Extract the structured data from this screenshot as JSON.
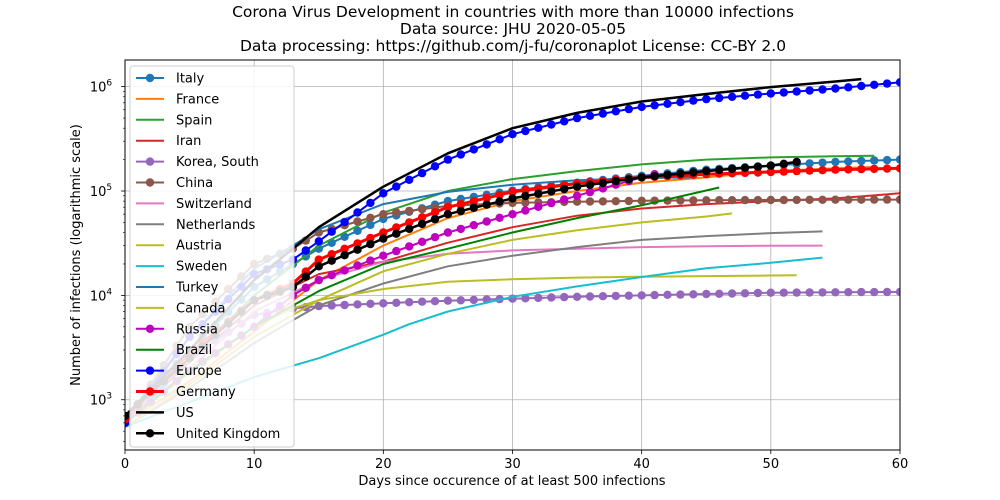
{
  "chart_data": {
    "type": "line",
    "title_lines": [
      "Corona Virus Development in countries with more than  10000 infections",
      "Data source: JHU 2020-05-05",
      "Data processing: https://github.com/j-fu/coronaplot  License: CC-BY 2.0"
    ],
    "xlabel": "Days since occurence of at least 500 infections",
    "ylabel": "Number of infections (logarithmic scale)",
    "xlim": [
      0,
      60
    ],
    "ylim": [
      330,
      1800000
    ],
    "yscale": "log",
    "grid": true,
    "legend_position": "upper-left",
    "x_ticks": [
      0,
      10,
      20,
      30,
      40,
      50,
      60
    ],
    "y_ticks": [
      {
        "value": 1000,
        "label_base": "10",
        "label_exp": "3"
      },
      {
        "value": 10000,
        "label_base": "10",
        "label_exp": "4"
      },
      {
        "value": 100000,
        "label_base": "10",
        "label_exp": "5"
      },
      {
        "value": 1000000,
        "label_base": "10",
        "label_exp": "6"
      }
    ],
    "series": [
      {
        "name": "Italy",
        "color": "#1f77b4",
        "marker": true,
        "width": 2,
        "points": [
          [
            0,
            650
          ],
          [
            5,
            3000
          ],
          [
            10,
            12000
          ],
          [
            15,
            28000
          ],
          [
            20,
            54000
          ],
          [
            25,
            80000
          ],
          [
            30,
            101000
          ],
          [
            35,
            120000
          ],
          [
            40,
            140000
          ],
          [
            45,
            160000
          ],
          [
            50,
            175000
          ],
          [
            55,
            190000
          ],
          [
            60,
            200000
          ]
        ]
      },
      {
        "name": "France",
        "color": "#ff7f0e",
        "marker": false,
        "width": 2,
        "points": [
          [
            0,
            600
          ],
          [
            5,
            1500
          ],
          [
            10,
            4500
          ],
          [
            15,
            14000
          ],
          [
            20,
            30000
          ],
          [
            25,
            55000
          ],
          [
            30,
            80000
          ],
          [
            35,
            100000
          ],
          [
            40,
            120000
          ],
          [
            45,
            135000
          ],
          [
            50,
            155000
          ],
          [
            55,
            165000
          ],
          [
            58,
            170000
          ]
        ]
      },
      {
        "name": "Spain",
        "color": "#2ca02c",
        "marker": false,
        "width": 2,
        "points": [
          [
            0,
            600
          ],
          [
            5,
            2500
          ],
          [
            10,
            10000
          ],
          [
            15,
            30000
          ],
          [
            20,
            62000
          ],
          [
            25,
            100000
          ],
          [
            30,
            130000
          ],
          [
            35,
            155000
          ],
          [
            40,
            180000
          ],
          [
            45,
            200000
          ],
          [
            50,
            210000
          ],
          [
            55,
            215000
          ],
          [
            58,
            218000
          ]
        ]
      },
      {
        "name": "Iran",
        "color": "#d62728",
        "marker": false,
        "width": 2,
        "points": [
          [
            0,
            600
          ],
          [
            5,
            2300
          ],
          [
            10,
            8000
          ],
          [
            15,
            16000
          ],
          [
            20,
            21000
          ],
          [
            25,
            32000
          ],
          [
            30,
            45000
          ],
          [
            35,
            58000
          ],
          [
            40,
            68000
          ],
          [
            45,
            75000
          ],
          [
            50,
            80000
          ],
          [
            55,
            85000
          ],
          [
            60,
            95000
          ]
        ]
      },
      {
        "name": "Korea, South",
        "color": "#9467bd",
        "marker": true,
        "width": 2,
        "points": [
          [
            0,
            600
          ],
          [
            5,
            2500
          ],
          [
            10,
            6500
          ],
          [
            13,
            7500
          ],
          [
            15,
            7900
          ],
          [
            20,
            8400
          ],
          [
            25,
            8900
          ],
          [
            30,
            9300
          ],
          [
            35,
            9700
          ],
          [
            40,
            10000
          ],
          [
            45,
            10300
          ],
          [
            50,
            10600
          ],
          [
            55,
            10700
          ],
          [
            60,
            10800
          ]
        ]
      },
      {
        "name": "China",
        "color": "#8c564b",
        "marker": true,
        "width": 2,
        "points": [
          [
            0,
            600
          ],
          [
            5,
            5000
          ],
          [
            10,
            20000
          ],
          [
            13,
            28000
          ],
          [
            15,
            40000
          ],
          [
            20,
            60000
          ],
          [
            25,
            72000
          ],
          [
            30,
            77000
          ],
          [
            35,
            79000
          ],
          [
            40,
            80500
          ],
          [
            45,
            81500
          ],
          [
            50,
            82000
          ],
          [
            55,
            82500
          ],
          [
            60,
            82800
          ]
        ]
      },
      {
        "name": "Switzerland",
        "color": "#e377c2",
        "marker": false,
        "width": 2,
        "points": [
          [
            0,
            600
          ],
          [
            5,
            2000
          ],
          [
            10,
            7000
          ],
          [
            15,
            14000
          ],
          [
            20,
            21000
          ],
          [
            25,
            25000
          ],
          [
            30,
            27000
          ],
          [
            35,
            28000
          ],
          [
            40,
            29000
          ],
          [
            45,
            29600
          ],
          [
            50,
            29900
          ],
          [
            54,
            30000
          ]
        ]
      },
      {
        "name": "Netherlands",
        "color": "#7f7f7f",
        "marker": false,
        "width": 2,
        "points": [
          [
            0,
            550
          ],
          [
            5,
            1300
          ],
          [
            10,
            3500
          ],
          [
            13,
            5800
          ],
          [
            15,
            8000
          ],
          [
            20,
            13000
          ],
          [
            25,
            19000
          ],
          [
            30,
            24000
          ],
          [
            35,
            29000
          ],
          [
            40,
            34000
          ],
          [
            45,
            37000
          ],
          [
            50,
            39500
          ],
          [
            54,
            41000
          ]
        ]
      },
      {
        "name": "Austria",
        "color": "#bcbd22",
        "marker": false,
        "width": 2,
        "points": [
          [
            0,
            600
          ],
          [
            5,
            1800
          ],
          [
            10,
            5000
          ],
          [
            13,
            7500
          ],
          [
            15,
            9000
          ],
          [
            20,
            11500
          ],
          [
            25,
            13500
          ],
          [
            30,
            14300
          ],
          [
            35,
            14800
          ],
          [
            40,
            15100
          ],
          [
            45,
            15300
          ],
          [
            50,
            15500
          ],
          [
            52,
            15600
          ]
        ]
      },
      {
        "name": "Sweden",
        "color": "#17becf",
        "marker": false,
        "width": 2,
        "points": [
          [
            0,
            550
          ],
          [
            5,
            950
          ],
          [
            10,
            1650
          ],
          [
            15,
            2500
          ],
          [
            20,
            4200
          ],
          [
            22,
            5300
          ],
          [
            25,
            7000
          ],
          [
            30,
            9700
          ],
          [
            35,
            12200
          ],
          [
            40,
            15000
          ],
          [
            45,
            18200
          ],
          [
            50,
            20500
          ],
          [
            54,
            23000
          ]
        ]
      },
      {
        "name": "Turkey",
        "color": "#1f77b4",
        "marker": false,
        "width": 2,
        "points": [
          [
            0,
            650
          ],
          [
            5,
            4000
          ],
          [
            10,
            18000
          ],
          [
            13,
            30000
          ],
          [
            15,
            43000
          ],
          [
            20,
            75000
          ],
          [
            25,
            98000
          ],
          [
            30,
            115000
          ],
          [
            35,
            127000
          ],
          [
            40,
            133000
          ],
          [
            44,
            135000
          ]
        ]
      },
      {
        "name": "Canada",
        "color": "#bcbd22",
        "marker": false,
        "width": 2,
        "points": [
          [
            0,
            550
          ],
          [
            5,
            1400
          ],
          [
            10,
            4000
          ],
          [
            13,
            6500
          ],
          [
            15,
            9000
          ],
          [
            20,
            17000
          ],
          [
            25,
            25000
          ],
          [
            30,
            34000
          ],
          [
            35,
            42000
          ],
          [
            40,
            50000
          ],
          [
            45,
            57000
          ],
          [
            47,
            61000
          ]
        ]
      },
      {
        "name": "Russia",
        "color": "#c000c0",
        "marker": true,
        "width": 2,
        "points": [
          [
            0,
            600
          ],
          [
            5,
            1900
          ],
          [
            10,
            5000
          ],
          [
            13,
            10000
          ],
          [
            15,
            14000
          ],
          [
            20,
            24000
          ],
          [
            25,
            40000
          ],
          [
            30,
            60000
          ],
          [
            35,
            90000
          ],
          [
            38,
            115000
          ],
          [
            40,
            135000
          ],
          [
            41,
            145000
          ]
        ]
      },
      {
        "name": "Brazil",
        "color": "#008000",
        "marker": false,
        "width": 2,
        "points": [
          [
            0,
            600
          ],
          [
            5,
            1900
          ],
          [
            10,
            5000
          ],
          [
            13,
            8000
          ],
          [
            15,
            11000
          ],
          [
            20,
            20000
          ],
          [
            25,
            28000
          ],
          [
            30,
            40000
          ],
          [
            35,
            55000
          ],
          [
            40,
            73000
          ],
          [
            46,
            108000
          ]
        ]
      },
      {
        "name": "Europe",
        "color": "#0000ff",
        "marker": true,
        "width": 2,
        "points": [
          [
            0,
            600
          ],
          [
            5,
            4000
          ],
          [
            10,
            16000
          ],
          [
            13,
            22000
          ],
          [
            15,
            33000
          ],
          [
            20,
            95000
          ],
          [
            25,
            200000
          ],
          [
            30,
            350000
          ],
          [
            35,
            500000
          ],
          [
            40,
            640000
          ],
          [
            45,
            760000
          ],
          [
            50,
            860000
          ],
          [
            55,
            960000
          ],
          [
            60,
            1100000
          ]
        ]
      },
      {
        "name": "Germany",
        "color": "#ff0000",
        "marker": true,
        "width": 3,
        "points": [
          [
            0,
            650
          ],
          [
            5,
            2800
          ],
          [
            10,
            9000
          ],
          [
            13,
            13000
          ],
          [
            15,
            22000
          ],
          [
            20,
            40000
          ],
          [
            25,
            70000
          ],
          [
            30,
            98000
          ],
          [
            35,
            118000
          ],
          [
            40,
            135000
          ],
          [
            45,
            145000
          ],
          [
            50,
            152000
          ],
          [
            55,
            160000
          ],
          [
            60,
            165000
          ]
        ]
      },
      {
        "name": "US",
        "color": "#000000",
        "marker": false,
        "width": 2.5,
        "points": [
          [
            0,
            700
          ],
          [
            5,
            3000
          ],
          [
            10,
            14000
          ],
          [
            13,
            28000
          ],
          [
            15,
            45000
          ],
          [
            20,
            110000
          ],
          [
            25,
            230000
          ],
          [
            30,
            400000
          ],
          [
            35,
            560000
          ],
          [
            40,
            720000
          ],
          [
            45,
            850000
          ],
          [
            50,
            990000
          ],
          [
            55,
            1120000
          ],
          [
            57,
            1180000
          ]
        ]
      },
      {
        "name": "United Kingdom",
        "color": "#000000",
        "marker": true,
        "width": 2.5,
        "points": [
          [
            0,
            700
          ],
          [
            5,
            2500
          ],
          [
            10,
            9000
          ],
          [
            13,
            12000
          ],
          [
            15,
            19000
          ],
          [
            20,
            35000
          ],
          [
            25,
            60000
          ],
          [
            30,
            85000
          ],
          [
            35,
            110000
          ],
          [
            40,
            135000
          ],
          [
            45,
            155000
          ],
          [
            50,
            175000
          ],
          [
            52,
            190000
          ]
        ]
      }
    ]
  }
}
